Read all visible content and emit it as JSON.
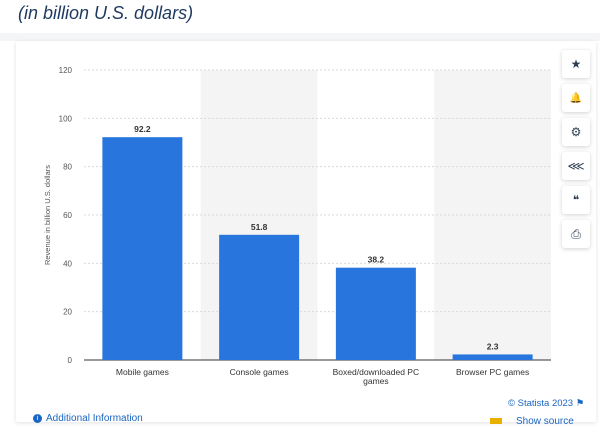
{
  "header": {
    "subtitle": "(in billion U.S. dollars)"
  },
  "toolbar": {
    "buttons": [
      {
        "icon": "star-icon",
        "glyph": "★"
      },
      {
        "icon": "bell-icon",
        "glyph": "🔔"
      },
      {
        "icon": "gear-icon",
        "glyph": "⚙"
      },
      {
        "icon": "share-icon",
        "glyph": "⋘"
      },
      {
        "icon": "quote-icon",
        "glyph": "❝"
      },
      {
        "icon": "print-icon",
        "glyph": "⎙"
      }
    ]
  },
  "footer": {
    "additional_info": "Additional Information",
    "credit": "© Statista 2023",
    "show_source": "Show source"
  },
  "chart_data": {
    "type": "bar",
    "categories": [
      "Mobile games",
      "Console games",
      "Boxed/downloaded PC games",
      "Browser PC games"
    ],
    "values": [
      92.2,
      51.8,
      38.2,
      2.3
    ],
    "value_labels": [
      "92.2",
      "51.8",
      "38.2",
      "2.3"
    ],
    "ylabel": "Revenue in billion U.S. dollars",
    "ylim": [
      0,
      120
    ],
    "yticks": [
      0,
      20,
      40,
      60,
      80,
      100,
      120
    ],
    "grid": true,
    "colors": {
      "bar": "#2876dd",
      "grid": "#d9d9d9",
      "band": "#f4f4f4",
      "axis": "#333333"
    }
  }
}
